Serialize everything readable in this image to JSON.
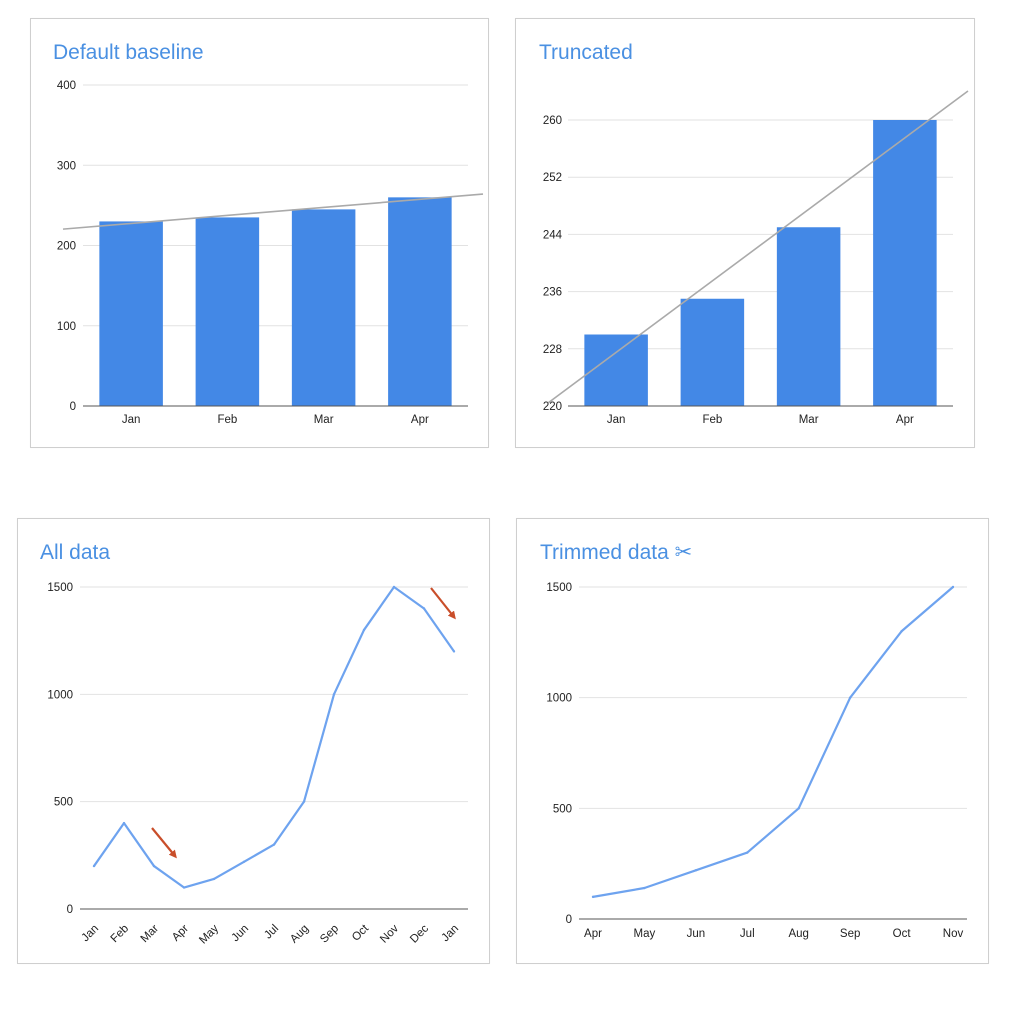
{
  "colors": {
    "series": "#4388e6",
    "line": "#6ea3ef",
    "title": "#4a90e2",
    "trendline": "#aaaaaa",
    "grid": "#e2e2e2",
    "axis": "#555555",
    "arrow": "#c94e2a"
  },
  "chart_data": [
    {
      "type": "bar",
      "title": "Default baseline",
      "categories": [
        "Jan",
        "Feb",
        "Mar",
        "Apr"
      ],
      "values": [
        230,
        235,
        245,
        260
      ],
      "ylim": [
        0,
        400
      ],
      "yticks": [
        0,
        100,
        200,
        300,
        400
      ],
      "trendline": true,
      "grid": true
    },
    {
      "type": "bar",
      "title": "Truncated",
      "categories": [
        "Jan",
        "Feb",
        "Mar",
        "Apr"
      ],
      "values": [
        230,
        235,
        245,
        260
      ],
      "ylim": [
        220,
        260
      ],
      "yticks": [
        220,
        228,
        236,
        244,
        252,
        260
      ],
      "trendline": true,
      "grid": true
    },
    {
      "type": "line",
      "title": "All data",
      "categories": [
        "Jan",
        "Feb",
        "Mar",
        "Apr",
        "May",
        "Jun",
        "Jul",
        "Aug",
        "Sep",
        "Oct",
        "Nov",
        "Dec",
        "Jan"
      ],
      "values": [
        200,
        400,
        200,
        100,
        140,
        220,
        300,
        500,
        1000,
        1300,
        1500,
        1400,
        1200
      ],
      "ylim": [
        0,
        1500
      ],
      "yticks": [
        0,
        500,
        1000,
        1500
      ],
      "rotated_labels": true,
      "annotations": [
        "arrow pointing to Apr",
        "arrow pointing to Jan"
      ],
      "grid": true
    },
    {
      "type": "line",
      "title": "Trimmed data ✂",
      "categories": [
        "Apr",
        "May",
        "Jun",
        "Jul",
        "Aug",
        "Sep",
        "Oct",
        "Nov"
      ],
      "values": [
        100,
        140,
        220,
        300,
        500,
        1000,
        1300,
        1500
      ],
      "ylim": [
        0,
        1500
      ],
      "yticks": [
        0,
        500,
        1000,
        1500
      ],
      "grid": true
    }
  ]
}
